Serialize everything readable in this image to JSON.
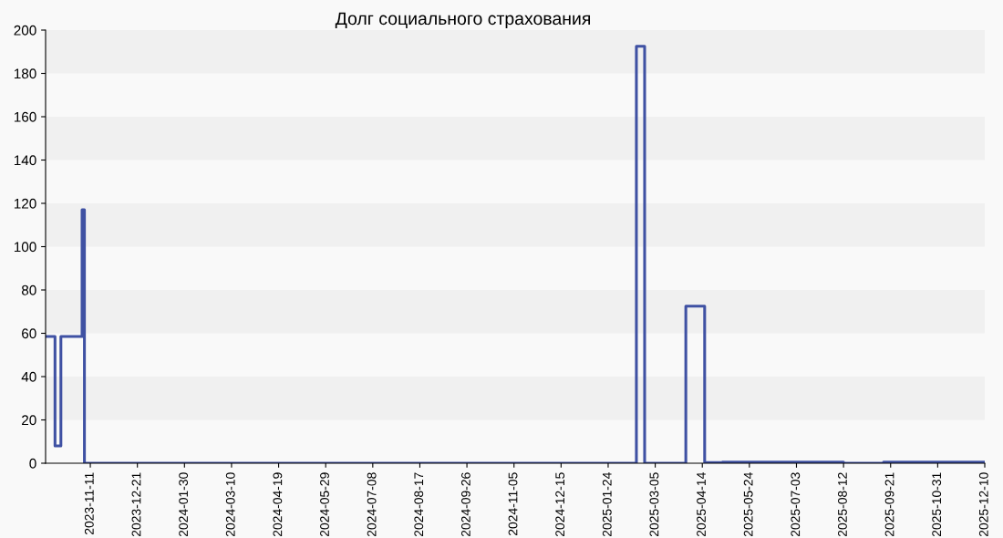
{
  "chart_data": {
    "type": "step",
    "title": "Долг социального страхования",
    "x": [
      "2023-10-04",
      "2023-10-12",
      "2023-10-17",
      "2023-11-04",
      "2023-11-06",
      "2025-02-17",
      "2025-02-24",
      "2025-03-31",
      "2025-04-16",
      "2025-05-01",
      "2025-08-12",
      "2025-09-15",
      "2025-12-10"
    ],
    "series": [
      {
        "color": "#3f51a3",
        "values": [
          58.5,
          8,
          58.5,
          117,
          0,
          192.5,
          0,
          72.5,
          0.3,
          0.5,
          0,
          0.5,
          0.5
        ]
      }
    ],
    "xlim": [
      "2023-10-04",
      "2025-12-10"
    ],
    "xticks": [
      "2023-11-11",
      "2023-12-21",
      "2024-01-30",
      "2024-03-10",
      "2024-04-19",
      "2024-05-29",
      "2024-07-08",
      "2024-08-17",
      "2024-09-26",
      "2024-11-05",
      "2024-12-15",
      "2025-01-24",
      "2025-03-05",
      "2025-04-14",
      "2025-05-24",
      "2025-07-03",
      "2025-08-12",
      "2025-09-21",
      "2025-10-31",
      "2025-12-10"
    ],
    "ylim": [
      0,
      200
    ],
    "yticks": [
      0,
      20,
      40,
      60,
      80,
      100,
      120,
      140,
      160,
      180,
      200
    ],
    "legend": false
  }
}
